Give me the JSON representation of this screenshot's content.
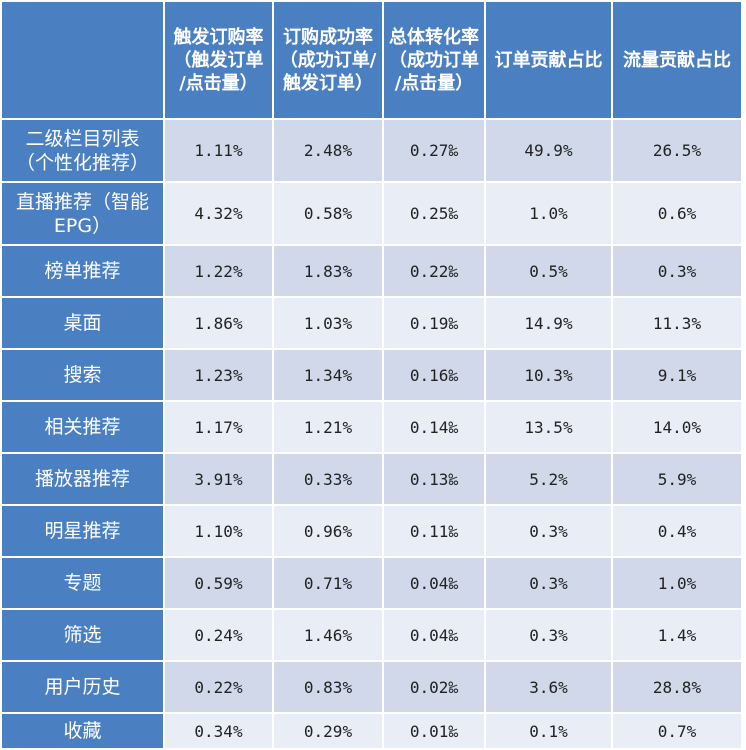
{
  "chart_data": {
    "type": "table",
    "columns": [
      "触发订购率\n（触发订单\n/点击量）",
      "订购成功率\n（成功订单/\n触发订单）",
      "总体转化率\n（成功订单\n/点击量）",
      "订单贡献占比",
      "流量贡献占比"
    ],
    "rows": [
      {
        "label": "二级栏目列表\n（个性化推荐）",
        "values": [
          "1.11%",
          "2.48%",
          "0.27‰",
          "49.9%",
          "26.5%"
        ],
        "highlight": [
          false,
          true,
          true,
          true,
          true
        ]
      },
      {
        "label": "直播推荐（智能\nEPG）",
        "values": [
          "4.32%",
          "0.58%",
          "0.25‰",
          "1.0%",
          "0.6%"
        ],
        "highlight": [
          true,
          false,
          true,
          false,
          false
        ]
      },
      {
        "label": "榜单推荐",
        "values": [
          "1.22%",
          "1.83%",
          "0.22‰",
          "0.5%",
          "0.3%"
        ],
        "highlight": [
          false,
          true,
          true,
          false,
          false
        ]
      },
      {
        "label": "桌面",
        "values": [
          "1.86%",
          "1.03%",
          "0.19‰",
          "14.9%",
          "11.3%"
        ],
        "highlight": [
          true,
          false,
          false,
          true,
          false
        ]
      },
      {
        "label": "搜索",
        "values": [
          "1.23%",
          "1.34%",
          "0.16‰",
          "10.3%",
          "9.1%"
        ],
        "highlight": [
          false,
          false,
          false,
          false,
          false
        ]
      },
      {
        "label": "相关推荐",
        "values": [
          "1.17%",
          "1.21%",
          "0.14‰",
          "13.5%",
          "14.0%"
        ],
        "highlight": [
          false,
          false,
          false,
          true,
          true
        ]
      },
      {
        "label": "播放器推荐",
        "values": [
          "3.91%",
          "0.33%",
          "0.13‰",
          "5.2%",
          "5.9%"
        ],
        "highlight": [
          true,
          false,
          false,
          false,
          false
        ]
      },
      {
        "label": "明星推荐",
        "values": [
          "1.10%",
          "0.96%",
          "0.11‰",
          "0.3%",
          "0.4%"
        ],
        "highlight": [
          false,
          false,
          false,
          false,
          false
        ]
      },
      {
        "label": "专题",
        "values": [
          "0.59%",
          "0.71%",
          "0.04‰",
          "0.3%",
          "1.0%"
        ],
        "highlight": [
          false,
          false,
          false,
          false,
          false
        ]
      },
      {
        "label": "筛选",
        "values": [
          "0.24%",
          "1.46%",
          "0.04‰",
          "0.3%",
          "1.4%"
        ],
        "highlight": [
          false,
          true,
          false,
          false,
          false
        ]
      },
      {
        "label": "用户历史",
        "values": [
          "0.22%",
          "0.83%",
          "0.02‰",
          "3.6%",
          "28.8%"
        ],
        "highlight": [
          false,
          false,
          false,
          false,
          true
        ]
      },
      {
        "label": "收藏",
        "values": [
          "0.34%",
          "0.29%",
          "0.01‰",
          "0.1%",
          "0.7%"
        ],
        "highlight": [
          false,
          false,
          false,
          false,
          false
        ]
      }
    ]
  },
  "colors": {
    "header_bg": "#4a7fc1",
    "row_odd": "#d0d8ea",
    "row_even": "#e9edf5",
    "highlight_text": "#ff1a1a",
    "normal_text": "#222222"
  }
}
